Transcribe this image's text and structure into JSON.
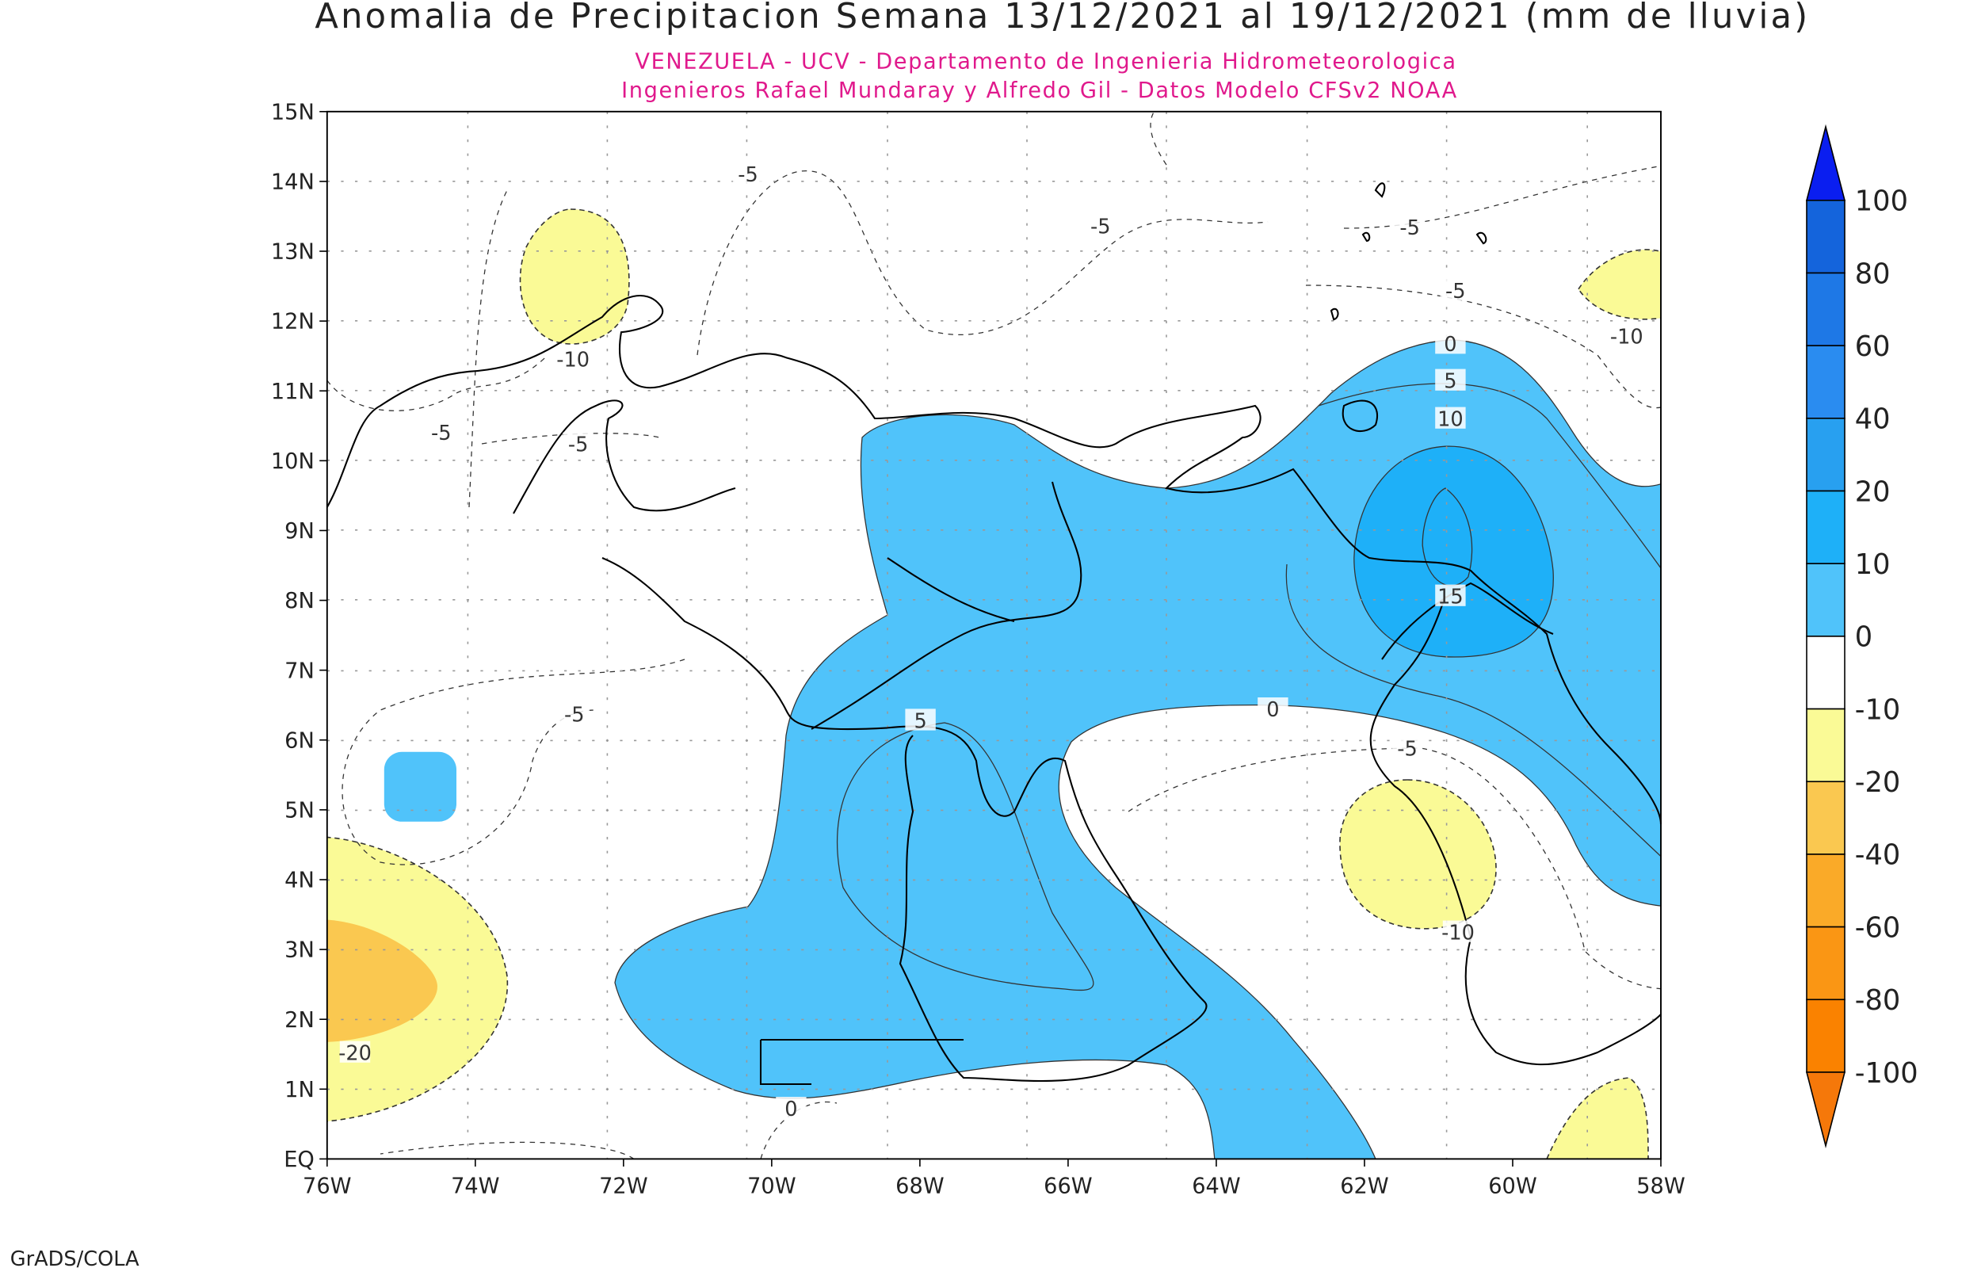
{
  "map": {
    "title": "Anomalia de Precipitacion Semana 13/12/2021 al 19/12/2021 (mm de lluvia)",
    "subtitles": [
      "VENEZUELA - UCV - Departamento de Ingenieria Hidrometeorologica",
      "Ingenieros Rafael Mundaray y Alfredo Gil - Datos Modelo CFSv2 NOAA"
    ],
    "lon_ticks": [
      "76W",
      "74W",
      "72W",
      "70W",
      "68W",
      "66W",
      "64W",
      "62W",
      "60W",
      "58W"
    ],
    "lat_ticks": [
      "EQ",
      "1N",
      "2N",
      "3N",
      "4N",
      "5N",
      "6N",
      "7N",
      "8N",
      "9N",
      "10N",
      "11N",
      "12N",
      "13N",
      "14N",
      "15N"
    ],
    "contour_labels": [
      "-5",
      "-5",
      "-5",
      "-5",
      "-10",
      "-5",
      "-5",
      "-10",
      "0",
      "5",
      "10",
      "15",
      "0",
      "-5",
      "-10",
      "5",
      "-5",
      "-20",
      "0"
    ],
    "colorbar": {
      "labels": [
        "100",
        "80",
        "60",
        "40",
        "20",
        "10",
        "0",
        "-10",
        "-20",
        "-40",
        "-60",
        "-80",
        "-100"
      ],
      "colors": [
        "#0a1ef0",
        "#1464dc",
        "#1e78e6",
        "#2a8cf0",
        "#28a0f0",
        "#1eb0f8",
        "#50c3fa",
        "#ffffff",
        "#fafa96",
        "#fac850",
        "#faaa28",
        "#fa9614",
        "#fa8200",
        "#f5780a"
      ]
    },
    "footer": "GrADS/COLA"
  }
}
